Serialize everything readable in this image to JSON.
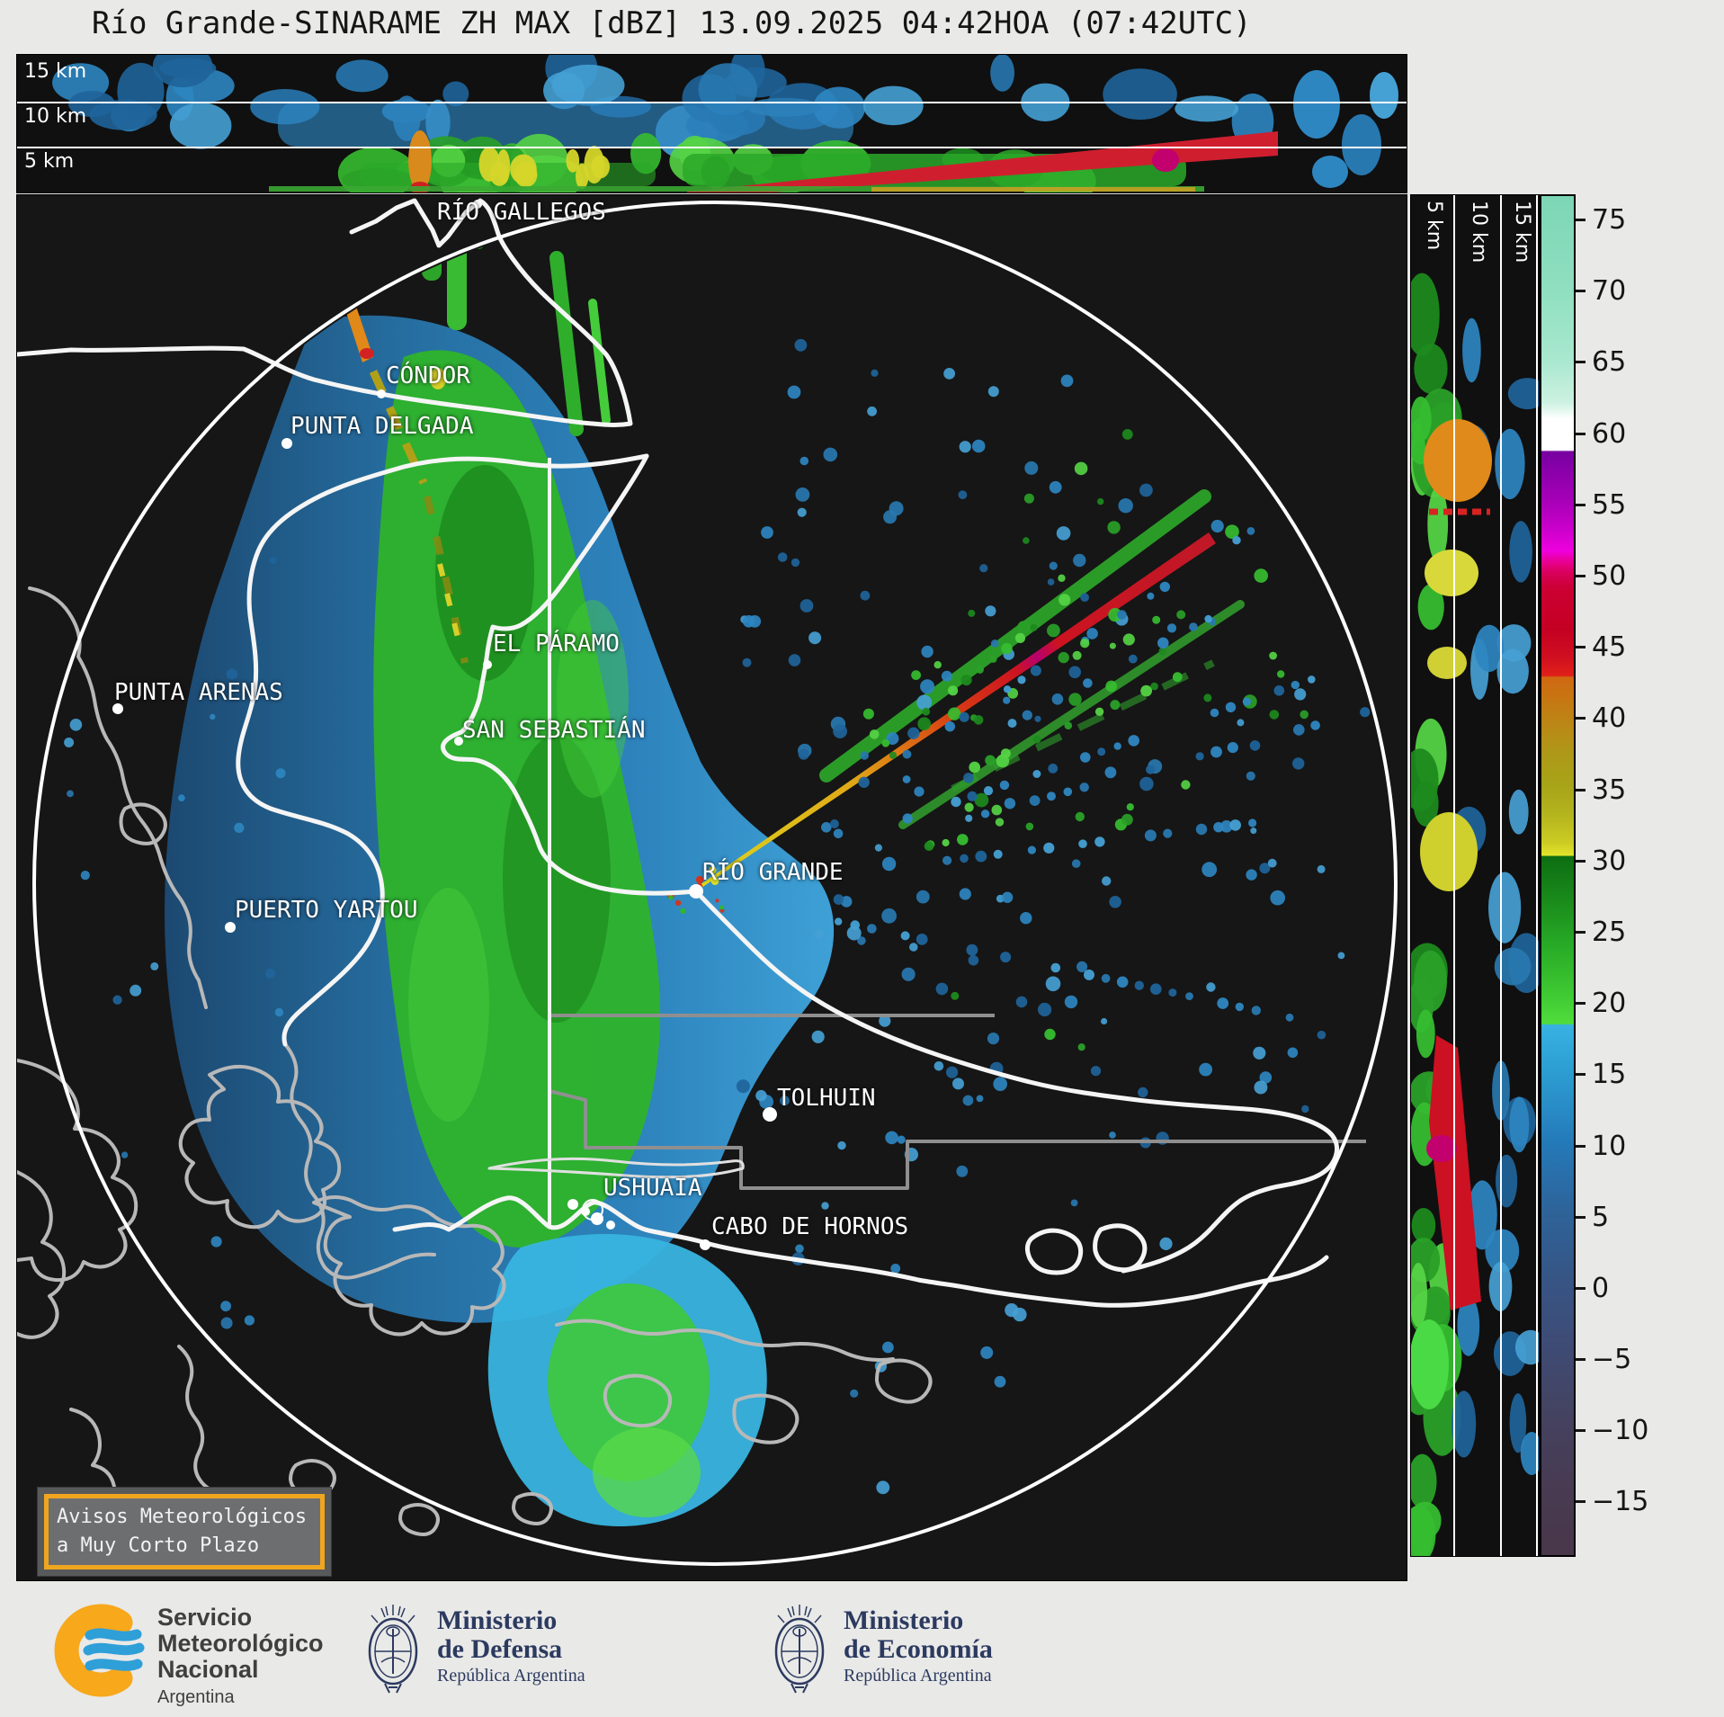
{
  "title": "Río Grande-SINARAME ZH MAX [dBZ] 13.09.2025 04:42HOA (07:42UTC)",
  "top_panel": {
    "labels": [
      "15 km",
      "10 km",
      "5 km"
    ]
  },
  "side_panel": {
    "labels": [
      "5 km",
      "10 km",
      "15 km"
    ]
  },
  "colorbar": {
    "ticks": [
      "75",
      "70",
      "65",
      "60",
      "55",
      "50",
      "45",
      "40",
      "35",
      "30",
      "25",
      "20",
      "15",
      "10",
      "5",
      "0",
      "−5",
      "−10",
      "−15"
    ],
    "scale_colors": {
      "75": "#7fd8b8",
      "60": "#ffffff",
      "55": "#a800b8",
      "50": "#d8005c",
      "45": "#c40022",
      "40": "#c67712",
      "35": "#a8a418",
      "30": "#e4e42a",
      "25": "#1e941e",
      "20": "#42cc34",
      "15": "#2c9ed2",
      "10": "#247ab8",
      "5": "#2e6398",
      "0": "#375484",
      "-5": "#3f4a72",
      "-10": "#45415e",
      "-15": "#483a50"
    }
  },
  "map": {
    "places": [
      {
        "name": "RÍO GALLEGOS"
      },
      {
        "name": "CÓNDOR"
      },
      {
        "name": "PUNTA DELGADA"
      },
      {
        "name": "EL PÁRAMO"
      },
      {
        "name": "PUNTA ARENAS"
      },
      {
        "name": "SAN SEBASTIÁN"
      },
      {
        "name": "RÍO GRANDE"
      },
      {
        "name": "PUERTO YARTOU"
      },
      {
        "name": "TOLHUIN"
      },
      {
        "name": "USHUAIA"
      },
      {
        "name": "CABO DE HORNOS"
      }
    ],
    "warning_box": {
      "line1": "Avisos Meteorológicos",
      "line2": "a Muy Corto Plazo",
      "border_color": "#f0a51e"
    }
  },
  "footer": {
    "smn": {
      "line1": "Servicio",
      "line2": "Meteorológico",
      "line3": "Nacional",
      "country": "Argentina"
    },
    "defensa": {
      "name_line1": "Ministerio",
      "name_line2": "de Defensa",
      "sub": "República Argentina"
    },
    "economia": {
      "name_line1": "Ministerio",
      "name_line2": "de Economía",
      "sub": "República Argentina"
    }
  }
}
